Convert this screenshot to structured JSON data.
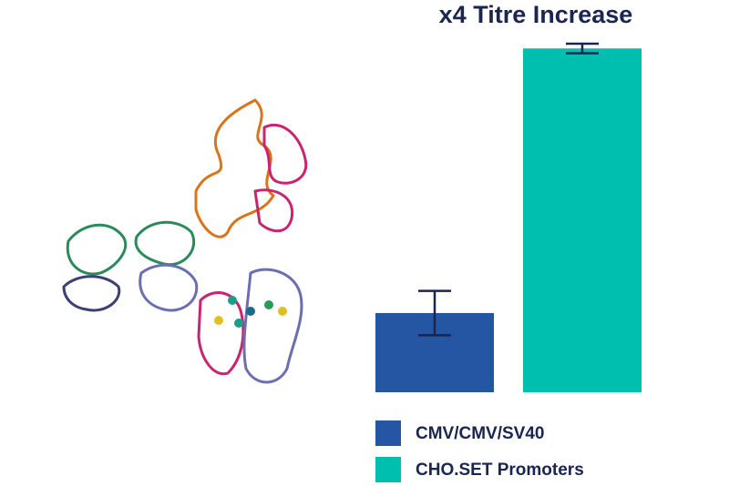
{
  "chart_data": {
    "type": "bar",
    "title": "x4 Titre Increase",
    "series": [
      {
        "name": "CMV/CMV/SV40",
        "color": "#2456a4",
        "values": [
          1.0
        ],
        "errors": [
          0.28
        ]
      },
      {
        "name": "CHO.SET Promoters",
        "color": "#00bfae",
        "values": [
          4.34
        ],
        "errors": [
          0.06
        ]
      }
    ],
    "error_bar_color": "#1a2550"
  }
}
